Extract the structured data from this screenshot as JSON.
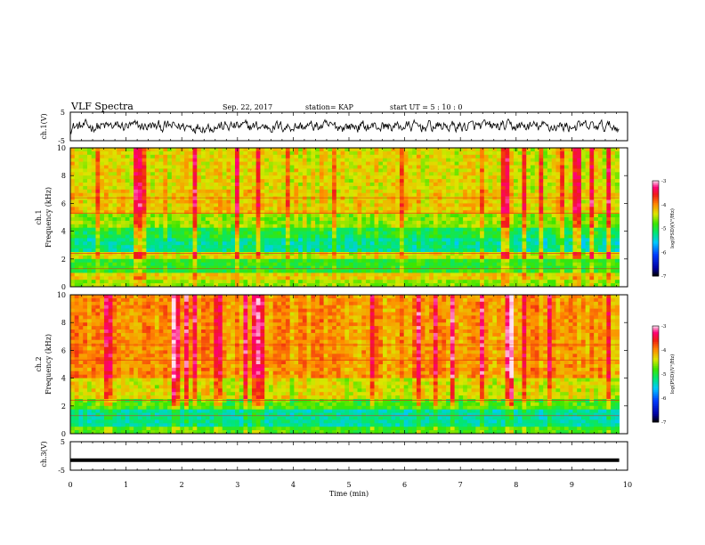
{
  "header": {
    "title": "VLF Spectra",
    "date": "Sep. 22, 2017",
    "station": "station= KAP",
    "start": "start  UT =   5  : 10 : 0"
  },
  "chart_data": [
    {
      "type": "line",
      "panel": "ch1-waveform",
      "ylabel": "ch.1(V)",
      "ylim": [
        -5,
        5
      ],
      "y_ticks": [
        "5",
        "-5"
      ],
      "x_range_min": [
        0,
        9.85
      ],
      "description_series": "noisy waveform centered near 0 V, amplitude about ±2.5 V"
    },
    {
      "type": "heatmap",
      "panel": "ch1-spectrogram",
      "ylabel": "ch.1\nFrequency (kHz)",
      "ylim_khz": [
        0,
        10
      ],
      "y_ticks": [
        "0",
        "2",
        "4",
        "6",
        "8",
        "10"
      ],
      "x_range_min": [
        0,
        9.85
      ],
      "colorbar": {
        "label": "log(PSD)(V²/Hz)",
        "range": [
          -7,
          -3
        ],
        "ticks": [
          "-3",
          "-4",
          "-5",
          "-6",
          "-7"
        ]
      },
      "bands": [
        {
          "f_lo": 0.0,
          "f_hi": 0.5,
          "level": -4.6
        },
        {
          "f_lo": 0.5,
          "f_hi": 1.0,
          "level": -4.3
        },
        {
          "f_lo": 1.0,
          "f_hi": 2.0,
          "level": -4.9
        },
        {
          "f_lo": 2.0,
          "f_hi": 2.5,
          "level": -4.4
        },
        {
          "f_lo": 2.5,
          "f_hi": 3.5,
          "level": -5.25
        },
        {
          "f_lo": 3.5,
          "f_hi": 4.2,
          "level": -5.0
        },
        {
          "f_lo": 4.2,
          "f_hi": 5.2,
          "level": -4.6
        },
        {
          "f_lo": 5.2,
          "f_hi": 7.0,
          "level": -4.25
        },
        {
          "f_lo": 7.0,
          "f_hi": 10.0,
          "level": -4.35
        }
      ]
    },
    {
      "type": "heatmap",
      "panel": "ch2-spectrogram",
      "ylabel": "ch.2\nFrequency (kHz)",
      "ylim_khz": [
        0,
        10
      ],
      "y_ticks": [
        "0",
        "2",
        "4",
        "6",
        "8",
        "10"
      ],
      "x_range_min": [
        0,
        9.85
      ],
      "colorbar": {
        "label": "log(PSD)(V²/Hz)",
        "range": [
          -7,
          -3
        ],
        "ticks": [
          "-3",
          "-4",
          "-5",
          "-6",
          "-7"
        ]
      },
      "bands": [
        {
          "f_lo": 0.0,
          "f_hi": 0.6,
          "level": -4.8
        },
        {
          "f_lo": 0.6,
          "f_hi": 1.8,
          "level": -5.3
        },
        {
          "f_lo": 1.8,
          "f_hi": 2.6,
          "level": -4.8
        },
        {
          "f_lo": 2.6,
          "f_hi": 4.0,
          "level": -4.4
        },
        {
          "f_lo": 4.0,
          "f_hi": 10.0,
          "level": -4.05
        }
      ]
    },
    {
      "type": "line",
      "panel": "ch3-waveform",
      "ylabel": "ch.3(V)",
      "ylim": [
        -5,
        5
      ],
      "y_ticks": [
        "5",
        "-5"
      ],
      "x_range_min": [
        0,
        9.85
      ],
      "series": [
        {
          "values": [
            -1.5,
            -1.5
          ]
        }
      ]
    }
  ],
  "x_axis": {
    "label": "Time (min)",
    "ticks": [
      "0",
      "1",
      "2",
      "3",
      "4",
      "5",
      "6",
      "7",
      "8",
      "9",
      "10"
    ],
    "range_min": [
      0,
      10
    ]
  }
}
